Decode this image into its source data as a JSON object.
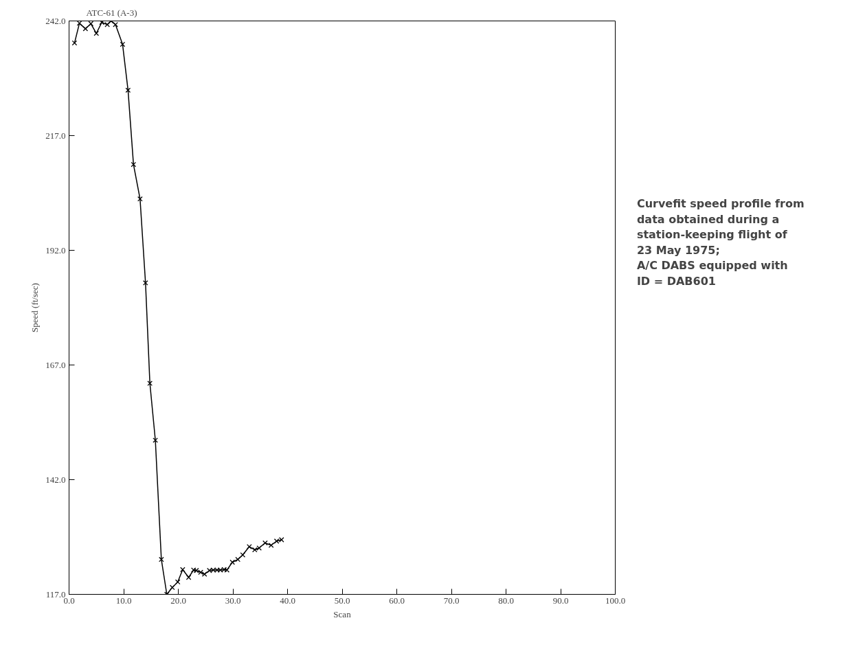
{
  "chart_data": {
    "type": "line",
    "title": "ATC-61 (A-3)",
    "xlabel": "Scan",
    "ylabel": "Speed (ft/sec)",
    "annotations": [
      "Curvefit speed profile from",
      "data obtained during a",
      "station-keeping flight of",
      "23 May 1975;",
      "A/C DABS equipped with",
      "ID = DAB601"
    ],
    "x": [
      1.0,
      1.9,
      3.0,
      4.0,
      5.0,
      6.0,
      7.0,
      7.7,
      8.5,
      9.8,
      10.8,
      11.8,
      13.0,
      14.0,
      14.8,
      15.8,
      16.9,
      17.9,
      18.9,
      19.9,
      20.8,
      21.9,
      22.8,
      23.3,
      24.1,
      24.8,
      25.7,
      26.4,
      27.1,
      27.7,
      28.4,
      28.9,
      29.9,
      30.9,
      31.8,
      33.0,
      34.0,
      34.8,
      35.9,
      37.0,
      38.0,
      38.9
    ],
    "series": [
      {
        "color": "#000000",
        "values": [
          237.2,
          241.5,
          240.3,
          241.4,
          239.3,
          241.7,
          241.2,
          242.0,
          241.2,
          236.9,
          226.9,
          210.7,
          203.2,
          184.9,
          163.0,
          150.6,
          124.6,
          117.0,
          118.5,
          119.7,
          122.4,
          120.7,
          122.3,
          122.2,
          121.8,
          121.4,
          122.2,
          122.3,
          122.3,
          122.3,
          122.4,
          122.3,
          124.0,
          124.6,
          125.6,
          127.4,
          126.7,
          127.1,
          128.2,
          127.7,
          128.6,
          128.9
        ]
      }
    ],
    "xlim": [
      0,
      100
    ],
    "ylim": [
      117,
      242
    ],
    "xticks": [
      {
        "value": 0,
        "label": "0.0"
      },
      {
        "value": 10,
        "label": "10.0"
      },
      {
        "value": 20,
        "label": "20.0"
      },
      {
        "value": 30,
        "label": "30.0"
      },
      {
        "value": 40,
        "label": "40.0"
      },
      {
        "value": 50,
        "label": "50.0"
      },
      {
        "value": 60,
        "label": "60.0"
      },
      {
        "value": 70,
        "label": "70.0"
      },
      {
        "value": 80,
        "label": "80.0"
      },
      {
        "value": 90,
        "label": "90.0"
      },
      {
        "value": 100,
        "label": "100.0"
      }
    ],
    "yticks": [
      {
        "value": 117,
        "label": "117.0"
      },
      {
        "value": 142,
        "label": "142.0"
      },
      {
        "value": 167,
        "label": "167.0"
      },
      {
        "value": 192,
        "label": "192.0"
      },
      {
        "value": 217,
        "label": "217.0"
      },
      {
        "value": 242,
        "label": "242.0"
      }
    ],
    "marker": "cross",
    "line_style": "solid",
    "grid": false
  }
}
